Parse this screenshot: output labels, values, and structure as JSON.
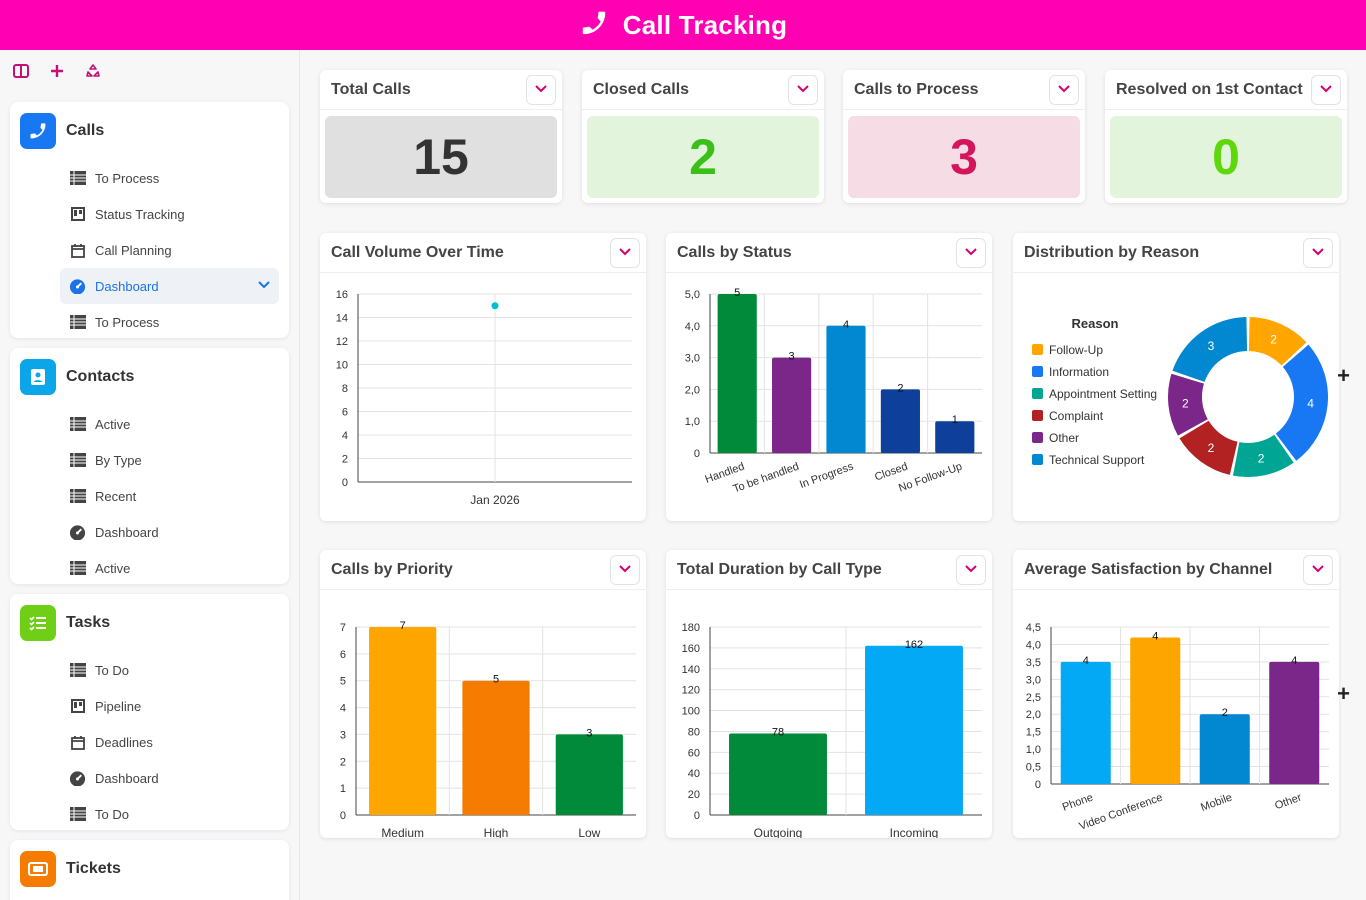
{
  "app": {
    "title": "Call Tracking"
  },
  "sidebar": {
    "sections": [
      {
        "label": "Calls",
        "items": [
          {
            "label": "To Process"
          },
          {
            "label": "Status Tracking"
          },
          {
            "label": "Call Planning"
          },
          {
            "label": "Dashboard"
          },
          {
            "label": "To Process"
          }
        ]
      },
      {
        "label": "Contacts",
        "items": [
          {
            "label": "Active"
          },
          {
            "label": "By Type"
          },
          {
            "label": "Recent"
          },
          {
            "label": "Dashboard"
          },
          {
            "label": "Active"
          }
        ]
      },
      {
        "label": "Tasks",
        "items": [
          {
            "label": "To Do"
          },
          {
            "label": "Pipeline"
          },
          {
            "label": "Deadlines"
          },
          {
            "label": "Dashboard"
          },
          {
            "label": "To Do"
          }
        ]
      },
      {
        "label": "Tickets",
        "items": []
      }
    ]
  },
  "kpis": [
    {
      "title": "Total Calls",
      "value": "15",
      "bg": "#e0e0e0",
      "color": "#333333"
    },
    {
      "title": "Closed Calls",
      "value": "2",
      "bg": "#e2f5dc",
      "color": "#3cbf18"
    },
    {
      "title": "Calls to Process",
      "value": "3",
      "bg": "#f6dde5",
      "color": "#d4155c"
    },
    {
      "title": "Resolved on 1st Contact",
      "value": "0",
      "bg": "#e2f5dc",
      "color": "#5ed80d"
    }
  ],
  "panels": {
    "volume": {
      "title": "Call Volume Over Time"
    },
    "status": {
      "title": "Calls by Status"
    },
    "reason": {
      "title": "Distribution by Reason"
    },
    "priority": {
      "title": "Calls by Priority"
    },
    "duration": {
      "title": "Total Duration by Call Type"
    },
    "satisfaction": {
      "title": "Average Satisfaction by Channel"
    }
  },
  "chart_data": [
    {
      "type": "line",
      "x": [
        "Jan 2026"
      ],
      "series": [
        {
          "values": [
            15
          ],
          "color": "#00bcd4"
        }
      ],
      "ylim": [
        0,
        16
      ],
      "yticks": [
        "0",
        "2",
        "4",
        "6",
        "8",
        "10",
        "12",
        "14",
        "16"
      ],
      "grid": true
    },
    {
      "type": "bar",
      "categories": [
        "Handled",
        "To be handled",
        "In Progress",
        "Closed",
        "No Follow-Up"
      ],
      "values": [
        5,
        3,
        4,
        2,
        1
      ],
      "colors": [
        "#008a3a",
        "#7b2689",
        "#0288d1",
        "#0d3f9b",
        "#0d3f9b"
      ],
      "ylim": [
        0,
        5
      ],
      "yticks": [
        "0",
        "1,0",
        "2,0",
        "3,0",
        "4,0",
        "5,0"
      ],
      "labels": [
        "5",
        "3",
        "4",
        "2",
        "1"
      ],
      "grid": true
    },
    {
      "type": "pie",
      "legend_title": "Reason",
      "legend_position": "left",
      "categories": [
        "Follow-Up",
        "Information",
        "Appointment Setting",
        "Complaint",
        "Other",
        "Technical Support"
      ],
      "values": [
        2,
        4,
        2,
        2,
        2,
        3
      ],
      "colors": [
        "#ffa500",
        "#1877f2",
        "#00a693",
        "#b22222",
        "#7b2689",
        "#0288d1"
      ],
      "labels": [
        "2",
        "4",
        "2",
        "2",
        "2",
        "3"
      ]
    },
    {
      "type": "bar",
      "categories": [
        "Medium",
        "High",
        "Low"
      ],
      "values": [
        7,
        5,
        3
      ],
      "colors": [
        "#ffa500",
        "#f57c00",
        "#008a3a"
      ],
      "ylim": [
        0,
        7
      ],
      "yticks": [
        "0",
        "1",
        "2",
        "3",
        "4",
        "5",
        "6",
        "7"
      ],
      "labels": [
        "7",
        "5",
        "3"
      ],
      "grid": true
    },
    {
      "type": "bar",
      "categories": [
        "Outgoing",
        "Incoming"
      ],
      "values": [
        78,
        162
      ],
      "colors": [
        "#008a3a",
        "#03a9f4"
      ],
      "ylim": [
        0,
        180
      ],
      "yticks": [
        "0",
        "20",
        "40",
        "60",
        "80",
        "100",
        "120",
        "140",
        "160",
        "180"
      ],
      "labels": [
        "78",
        "162"
      ],
      "grid": true
    },
    {
      "type": "bar",
      "categories": [
        "Phone",
        "Video Conference",
        "Mobile",
        "Other"
      ],
      "values": [
        3.5,
        4.2,
        2,
        3.5
      ],
      "colors": [
        "#03a9f4",
        "#ffa500",
        "#0288d1",
        "#7b2689"
      ],
      "ylim": [
        0,
        4.5
      ],
      "yticks": [
        "0",
        "0,5",
        "1,0",
        "1,5",
        "2,0",
        "2,5",
        "3,0",
        "3,5",
        "4,0",
        "4,5"
      ],
      "labels": [
        "4",
        "4",
        "2",
        "4"
      ],
      "grid": true
    }
  ]
}
